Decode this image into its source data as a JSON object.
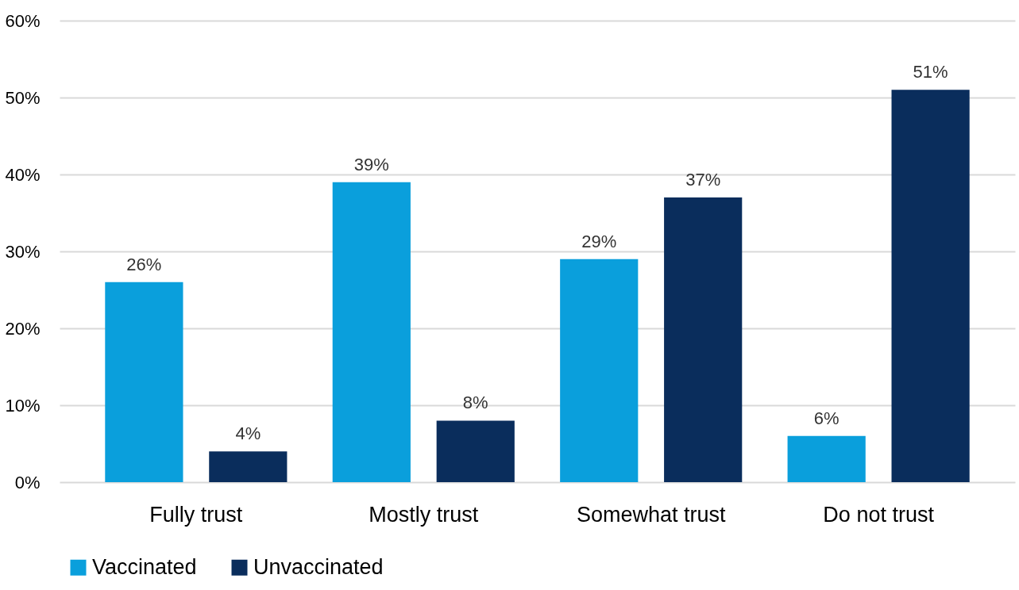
{
  "chart_data": {
    "type": "bar",
    "categories": [
      "Fully trust",
      "Mostly trust",
      "Somewhat trust",
      "Do not trust"
    ],
    "series": [
      {
        "name": "Vaccinated",
        "color": "#0a9fdc",
        "values": [
          26,
          39,
          29,
          6
        ],
        "value_labels": [
          "26%",
          "39%",
          "29%",
          "6%"
        ]
      },
      {
        "name": "Unvaccinated",
        "color": "#0a2d5c",
        "values": [
          4,
          8,
          37,
          51
        ],
        "value_labels": [
          "4%",
          "8%",
          "37%",
          "51%"
        ]
      }
    ],
    "ylim": [
      0,
      60
    ],
    "yticks": [
      {
        "value": 0,
        "label": "0%"
      },
      {
        "value": 10,
        "label": "10%"
      },
      {
        "value": 20,
        "label": "20%"
      },
      {
        "value": 30,
        "label": "30%"
      },
      {
        "value": 40,
        "label": "40%"
      },
      {
        "value": 50,
        "label": "50%"
      },
      {
        "value": 60,
        "label": "60%"
      }
    ],
    "grid": "y",
    "legend": "bottom"
  }
}
